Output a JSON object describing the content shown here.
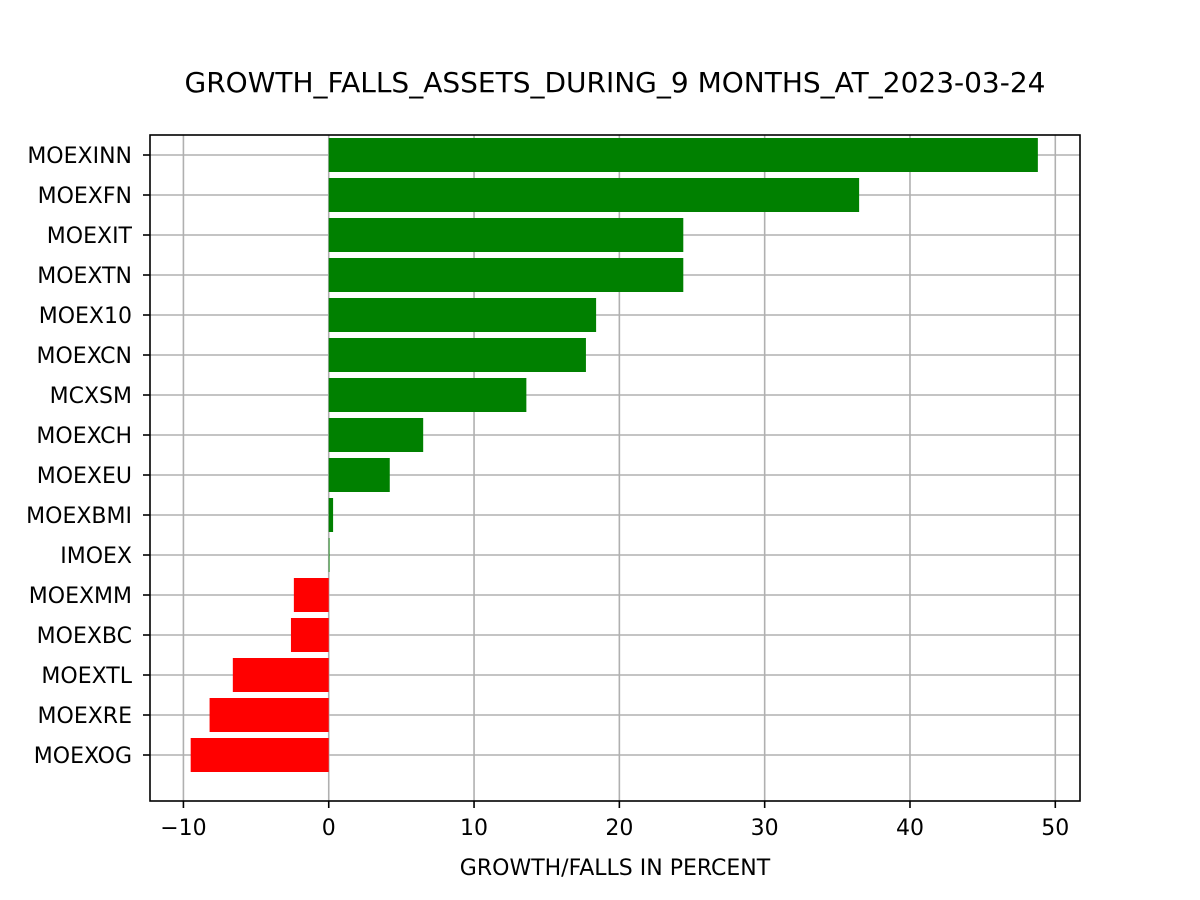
{
  "chart_data": {
    "type": "bar",
    "orientation": "horizontal",
    "title": "GROWTH_FALLS_ASSETS_DURING_9 MONTHS_AT_2023-03-24",
    "xlabel": "GROWTH/FALLS IN PERCENT",
    "ylabel": "",
    "xlim": [
      -12.3,
      51.7
    ],
    "xticks": [
      -10,
      0,
      10,
      20,
      30,
      40,
      50
    ],
    "xtick_labels": [
      "−10",
      "0",
      "10",
      "20",
      "30",
      "40",
      "50"
    ],
    "grid": true,
    "categories": [
      "MOEXINN",
      "MOEXFN",
      "MOEXIT",
      "MOEXTN",
      "MOEX10",
      "MOEXCN",
      "MCXSM",
      "MOEXCH",
      "MOEXEU",
      "MOEXBMI",
      "IMOEX",
      "MOEXMM",
      "MOEXBC",
      "MOEXTL",
      "MOEXRE",
      "MOEXOG"
    ],
    "values": [
      48.8,
      36.5,
      24.4,
      24.4,
      18.4,
      17.7,
      13.6,
      6.5,
      4.2,
      0.3,
      0.05,
      -2.4,
      -2.6,
      -6.6,
      -8.2,
      -9.5
    ],
    "colors": {
      "positive": "#008000",
      "negative": "#ff0000"
    }
  }
}
